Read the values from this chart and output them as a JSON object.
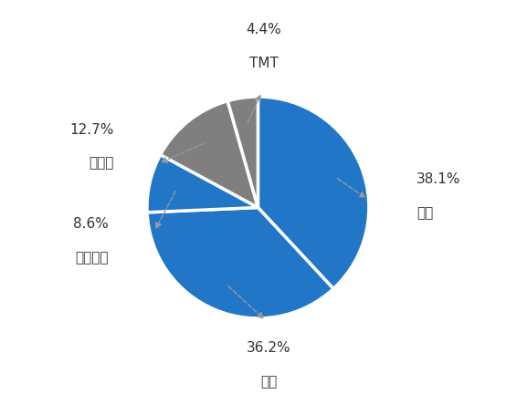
{
  "labels": [
    "零售",
    "金融",
    "联合办公",
    "制造业",
    "TMT"
  ],
  "values": [
    38.1,
    36.2,
    8.6,
    12.7,
    4.4
  ],
  "colors": [
    "#2176C7",
    "#2176C7",
    "#2176C7",
    "#7F7F7F",
    "#7F7F7F"
  ],
  "pct_labels": [
    "38.1%",
    "36.2%",
    "8.6%",
    "12.7%",
    "4.4%"
  ],
  "name_labels": [
    "零售",
    "金融",
    "联合办公",
    "制造业",
    "TMT"
  ],
  "start_angle": 90,
  "background_color": "#ffffff",
  "font_size": 11,
  "line_color": "#999999"
}
